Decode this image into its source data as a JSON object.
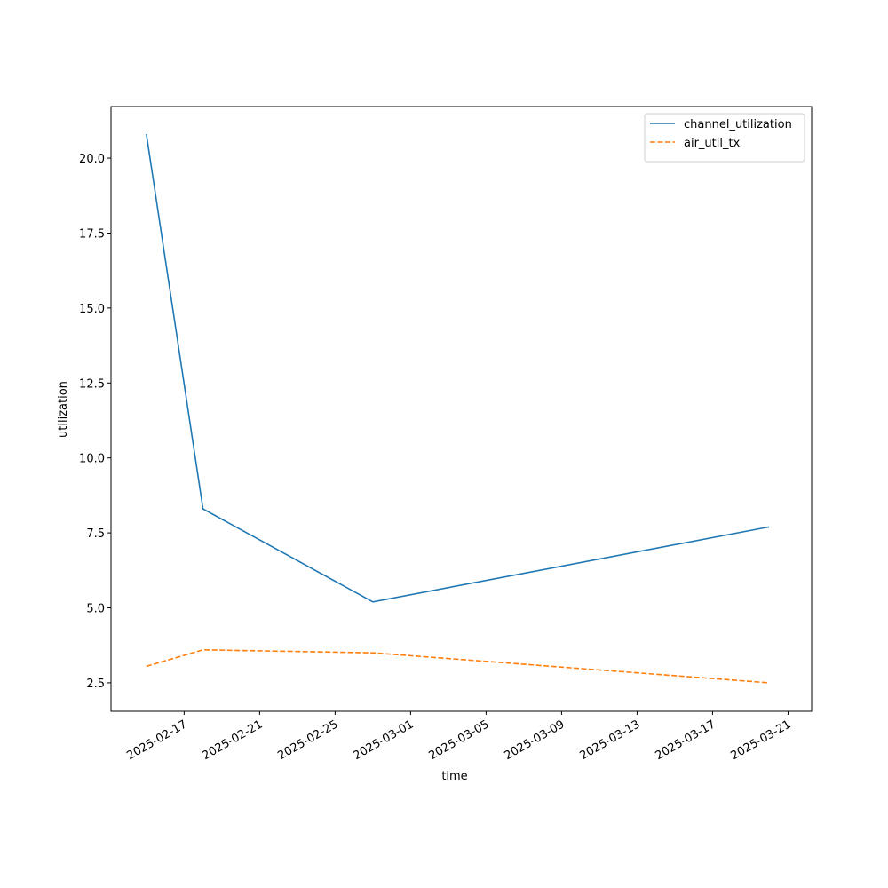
{
  "chart_data": {
    "type": "line",
    "x_label": "time",
    "y_label": "utilization",
    "x": [
      "2025-02-15",
      "2025-02-18",
      "2025-02-27",
      "2025-03-20"
    ],
    "series": [
      {
        "name": "channel_utilization",
        "color": "#1f77b4",
        "dash": "solid",
        "values": [
          20.8,
          8.3,
          5.2,
          7.7
        ]
      },
      {
        "name": "air_util_tx",
        "color": "#ff7f0e",
        "dash": "dashed",
        "values": [
          3.05,
          3.6,
          3.5,
          2.5
        ]
      }
    ],
    "xlim": [
      "2025-02-13T03:00",
      "2025-03-22T06:00"
    ],
    "xticks": [
      "2025-02-17",
      "2025-02-21",
      "2025-02-25",
      "2025-03-01",
      "2025-03-05",
      "2025-03-09",
      "2025-03-13",
      "2025-03-17",
      "2025-03-21"
    ],
    "ylim": [
      1.55,
      21.72
    ],
    "yticks": [
      {
        "value": 2.5,
        "label": "2.5"
      },
      {
        "value": 5,
        "label": "5.0"
      },
      {
        "value": 7.5,
        "label": "7.5"
      },
      {
        "value": 10,
        "label": "10.0"
      },
      {
        "value": 12.5,
        "label": "12.5"
      },
      {
        "value": 15,
        "label": "15.0"
      },
      {
        "value": 17.5,
        "label": "17.5"
      },
      {
        "value": 20,
        "label": "20.0"
      }
    ],
    "legend": "upper right",
    "grid": false
  }
}
